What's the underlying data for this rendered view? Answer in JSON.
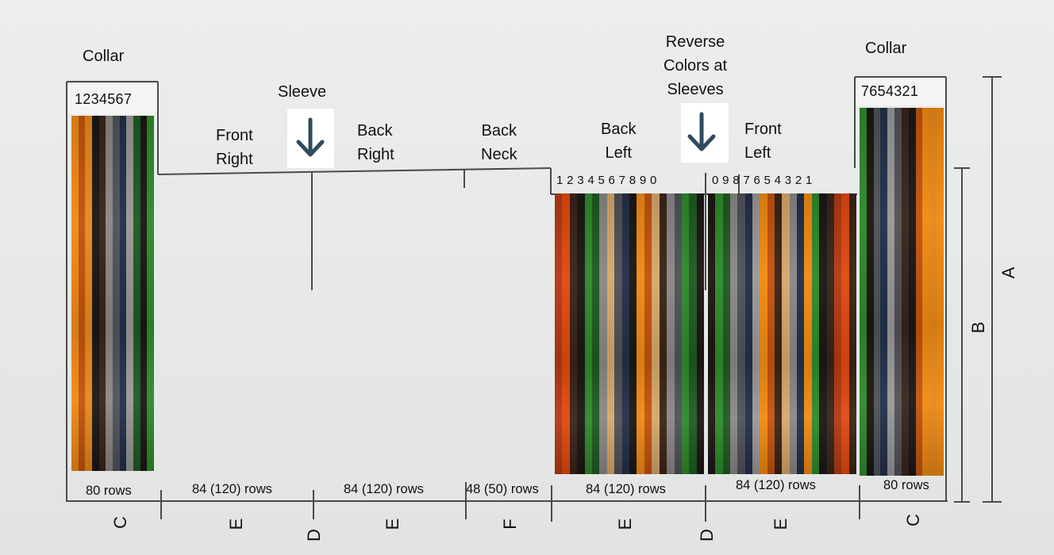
{
  "labels": {
    "collar_left": "Collar",
    "collar_right": "Collar",
    "sleeve": "Sleeve",
    "front_right": "Front\nRight",
    "back_right": "Back\nRight",
    "back_neck": "Back\nNeck",
    "back_left": "Back\nLeft",
    "reverse_colors": "Reverse\nColors at\nSleeves",
    "front_left": "Front\nLeft"
  },
  "numbers": {
    "collar_left": "1234567",
    "collar_right": "7654321",
    "back_left": "1 2 3 4 5  6 7 8 9  0",
    "front_left": "0 9 8  7 6 5 4 3  2 1"
  },
  "rows": {
    "c_left": "80 rows",
    "e1": "84 (120) rows",
    "e2": "84 (120) rows",
    "f": "48 (50) rows",
    "e3": "84 (120) rows",
    "e4": "84 (120) rows",
    "c_right": "80 rows"
  },
  "sections": {
    "c_left": "C",
    "e1": "E",
    "d1": "D",
    "e2": "E",
    "f": "F",
    "e3": "E",
    "d2": "D",
    "e4": "E",
    "c_right": "C"
  },
  "dimensions": {
    "a": "A",
    "b": "B"
  },
  "colors": {
    "orange": "#f28a12",
    "dark_orange": "#c2530e",
    "rust": "#b43a12",
    "brown": "#3a2418",
    "black": "#1b1714",
    "grey": "#8a8786",
    "dark_grey": "#4f5257",
    "navy": "#22304a",
    "green": "#2f8a2a",
    "dark_green": "#1f5a22",
    "tan": "#d7a86a",
    "arrow": "#2f4b5e"
  },
  "icons": {
    "sleeve_arrow": "arrow-down-icon",
    "reverse_arrow": "arrow-down-icon"
  }
}
